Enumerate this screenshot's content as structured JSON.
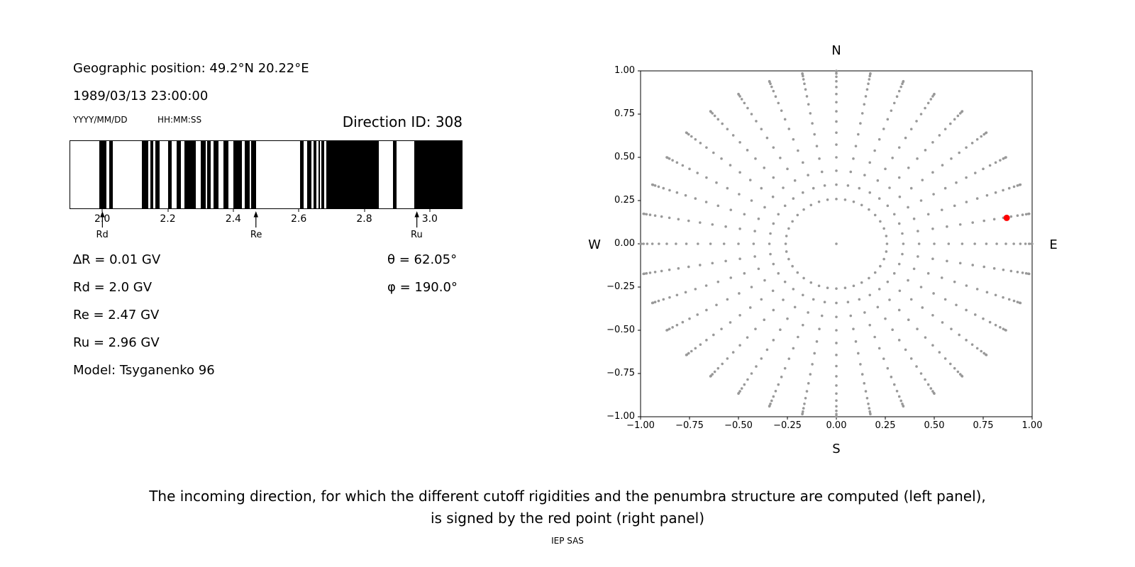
{
  "figure": {
    "background": "#ffffff",
    "text_color": "#000000"
  },
  "header": {
    "geo_position": "Geographic position: 49.2°N 20.22°E",
    "datetime": "1989/03/13 23:00:00",
    "date_format": "YYYY/MM/DD",
    "time_format": "HH:MM:SS",
    "direction_id": "Direction ID: 308"
  },
  "cutoff_info": {
    "delta_r": "∆R = 0.01 GV",
    "rd": "Rd = 2.0 GV",
    "re": "Re = 2.47 GV",
    "ru": "Ru = 2.96 GV",
    "model": "Model: Tsyganenko 96",
    "theta": "θ = 62.05°",
    "phi": "φ = 190.0°"
  },
  "caption": {
    "line1": "The incoming direction, for which the different cutoff rigidities and the penumbra structure are computed (left panel),",
    "line2": "is signed by the red point (right panel)",
    "credit": "IEP SAS"
  },
  "chart_data": [
    {
      "id": "penumbra-plot",
      "type": "bar",
      "xlim": [
        1.9,
        3.1
      ],
      "xticks": [
        2.0,
        2.2,
        2.4,
        2.6,
        2.8,
        3.0
      ],
      "xtick_labels": [
        "2.0",
        "2.2",
        "2.4",
        "2.6",
        "2.8",
        "3.0"
      ],
      "band_color": "#000000",
      "allowed_bands_gv": [
        [
          1.99,
          2.01
        ],
        [
          2.02,
          2.03
        ],
        [
          2.12,
          2.14
        ],
        [
          2.145,
          2.155
        ],
        [
          2.16,
          2.175
        ],
        [
          2.2,
          2.21
        ],
        [
          2.225,
          2.24
        ],
        [
          2.25,
          2.285
        ],
        [
          2.3,
          2.315
        ],
        [
          2.32,
          2.33
        ],
        [
          2.34,
          2.355
        ],
        [
          2.37,
          2.385
        ],
        [
          2.4,
          2.425
        ],
        [
          2.435,
          2.45
        ],
        [
          2.455,
          2.47
        ],
        [
          2.605,
          2.615
        ],
        [
          2.625,
          2.64
        ],
        [
          2.645,
          2.655
        ],
        [
          2.66,
          2.665
        ],
        [
          2.67,
          2.678
        ],
        [
          2.685,
          2.845
        ],
        [
          2.89,
          2.9
        ],
        [
          2.955,
          3.1
        ]
      ],
      "cutoff_markers": [
        {
          "label": "Rd",
          "x": 2.0
        },
        {
          "label": "Re",
          "x": 2.47
        },
        {
          "label": "Ru",
          "x": 2.96
        }
      ]
    },
    {
      "id": "direction-plot",
      "type": "scatter",
      "xlim": [
        -1,
        1
      ],
      "ylim": [
        -1,
        1
      ],
      "xticks": [
        -1,
        -0.75,
        -0.5,
        -0.25,
        0,
        0.25,
        0.5,
        0.75,
        1
      ],
      "yticks": [
        -1,
        -0.75,
        -0.5,
        -0.25,
        0,
        0.25,
        0.5,
        0.75,
        1
      ],
      "xtick_labels": [
        "−1.00",
        "−0.75",
        "−0.50",
        "−0.25",
        "0.00",
        "0.25",
        "0.50",
        "0.75",
        "1.00"
      ],
      "ytick_labels": [
        "−1.00",
        "−0.75",
        "−0.50",
        "−0.25",
        "0.00",
        "0.25",
        "0.50",
        "0.75",
        "1.00"
      ],
      "compass": {
        "top": "N",
        "bottom": "S",
        "left": "W",
        "right": "E"
      },
      "grid_points": {
        "marker_color": "#999999",
        "marker_radius_px": 1.8,
        "azimuth_deg": {
          "start": 0,
          "stop": 350,
          "step": 10
        },
        "zenith_deg": {
          "start": 15,
          "stop": 90,
          "step": 5
        },
        "radius_rule": "sin(zenith)",
        "include_center_point": true
      },
      "red_point": {
        "x": 0.87,
        "y": 0.15,
        "color": "#ff0000",
        "marker_radius_px": 4.5
      }
    }
  ]
}
